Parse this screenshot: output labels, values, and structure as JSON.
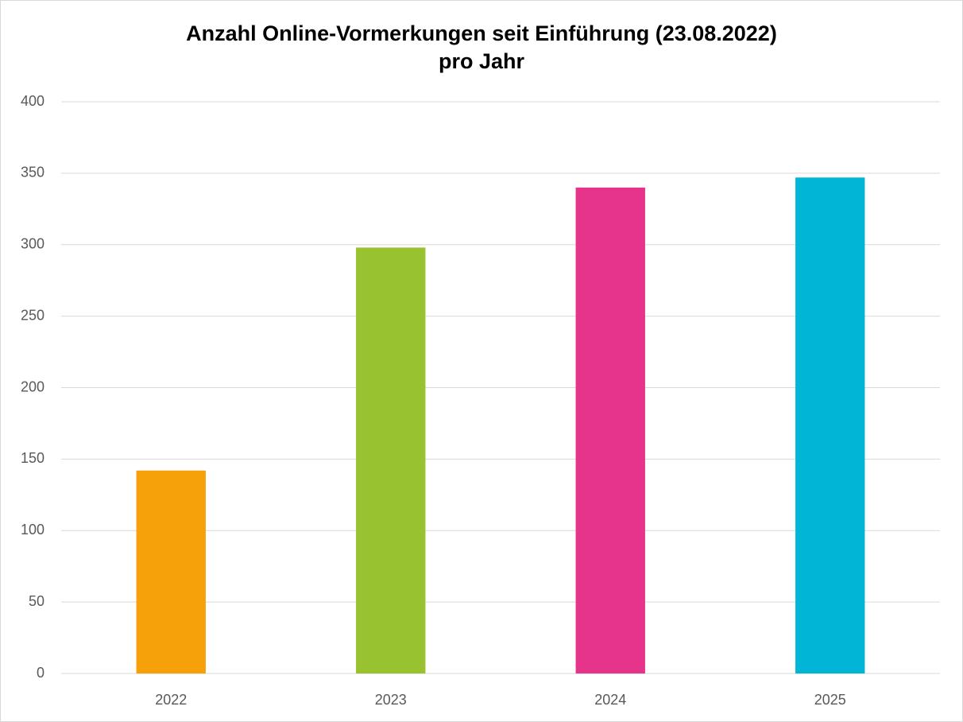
{
  "chart_data": {
    "type": "bar",
    "title": [
      "Anzahl Online-Vormerkungen seit Einführung (23.08.2022)",
      "pro Jahr"
    ],
    "categories": [
      "2022",
      "2023",
      "2024",
      "2025"
    ],
    "values": [
      142,
      298,
      340,
      347
    ],
    "colors": [
      "#f6a00a",
      "#98c22f",
      "#e6348a",
      "#00b5d5"
    ],
    "ylim": [
      0,
      400
    ],
    "yticks": [
      0,
      50,
      100,
      150,
      200,
      250,
      300,
      350,
      400
    ],
    "grid": true
  }
}
